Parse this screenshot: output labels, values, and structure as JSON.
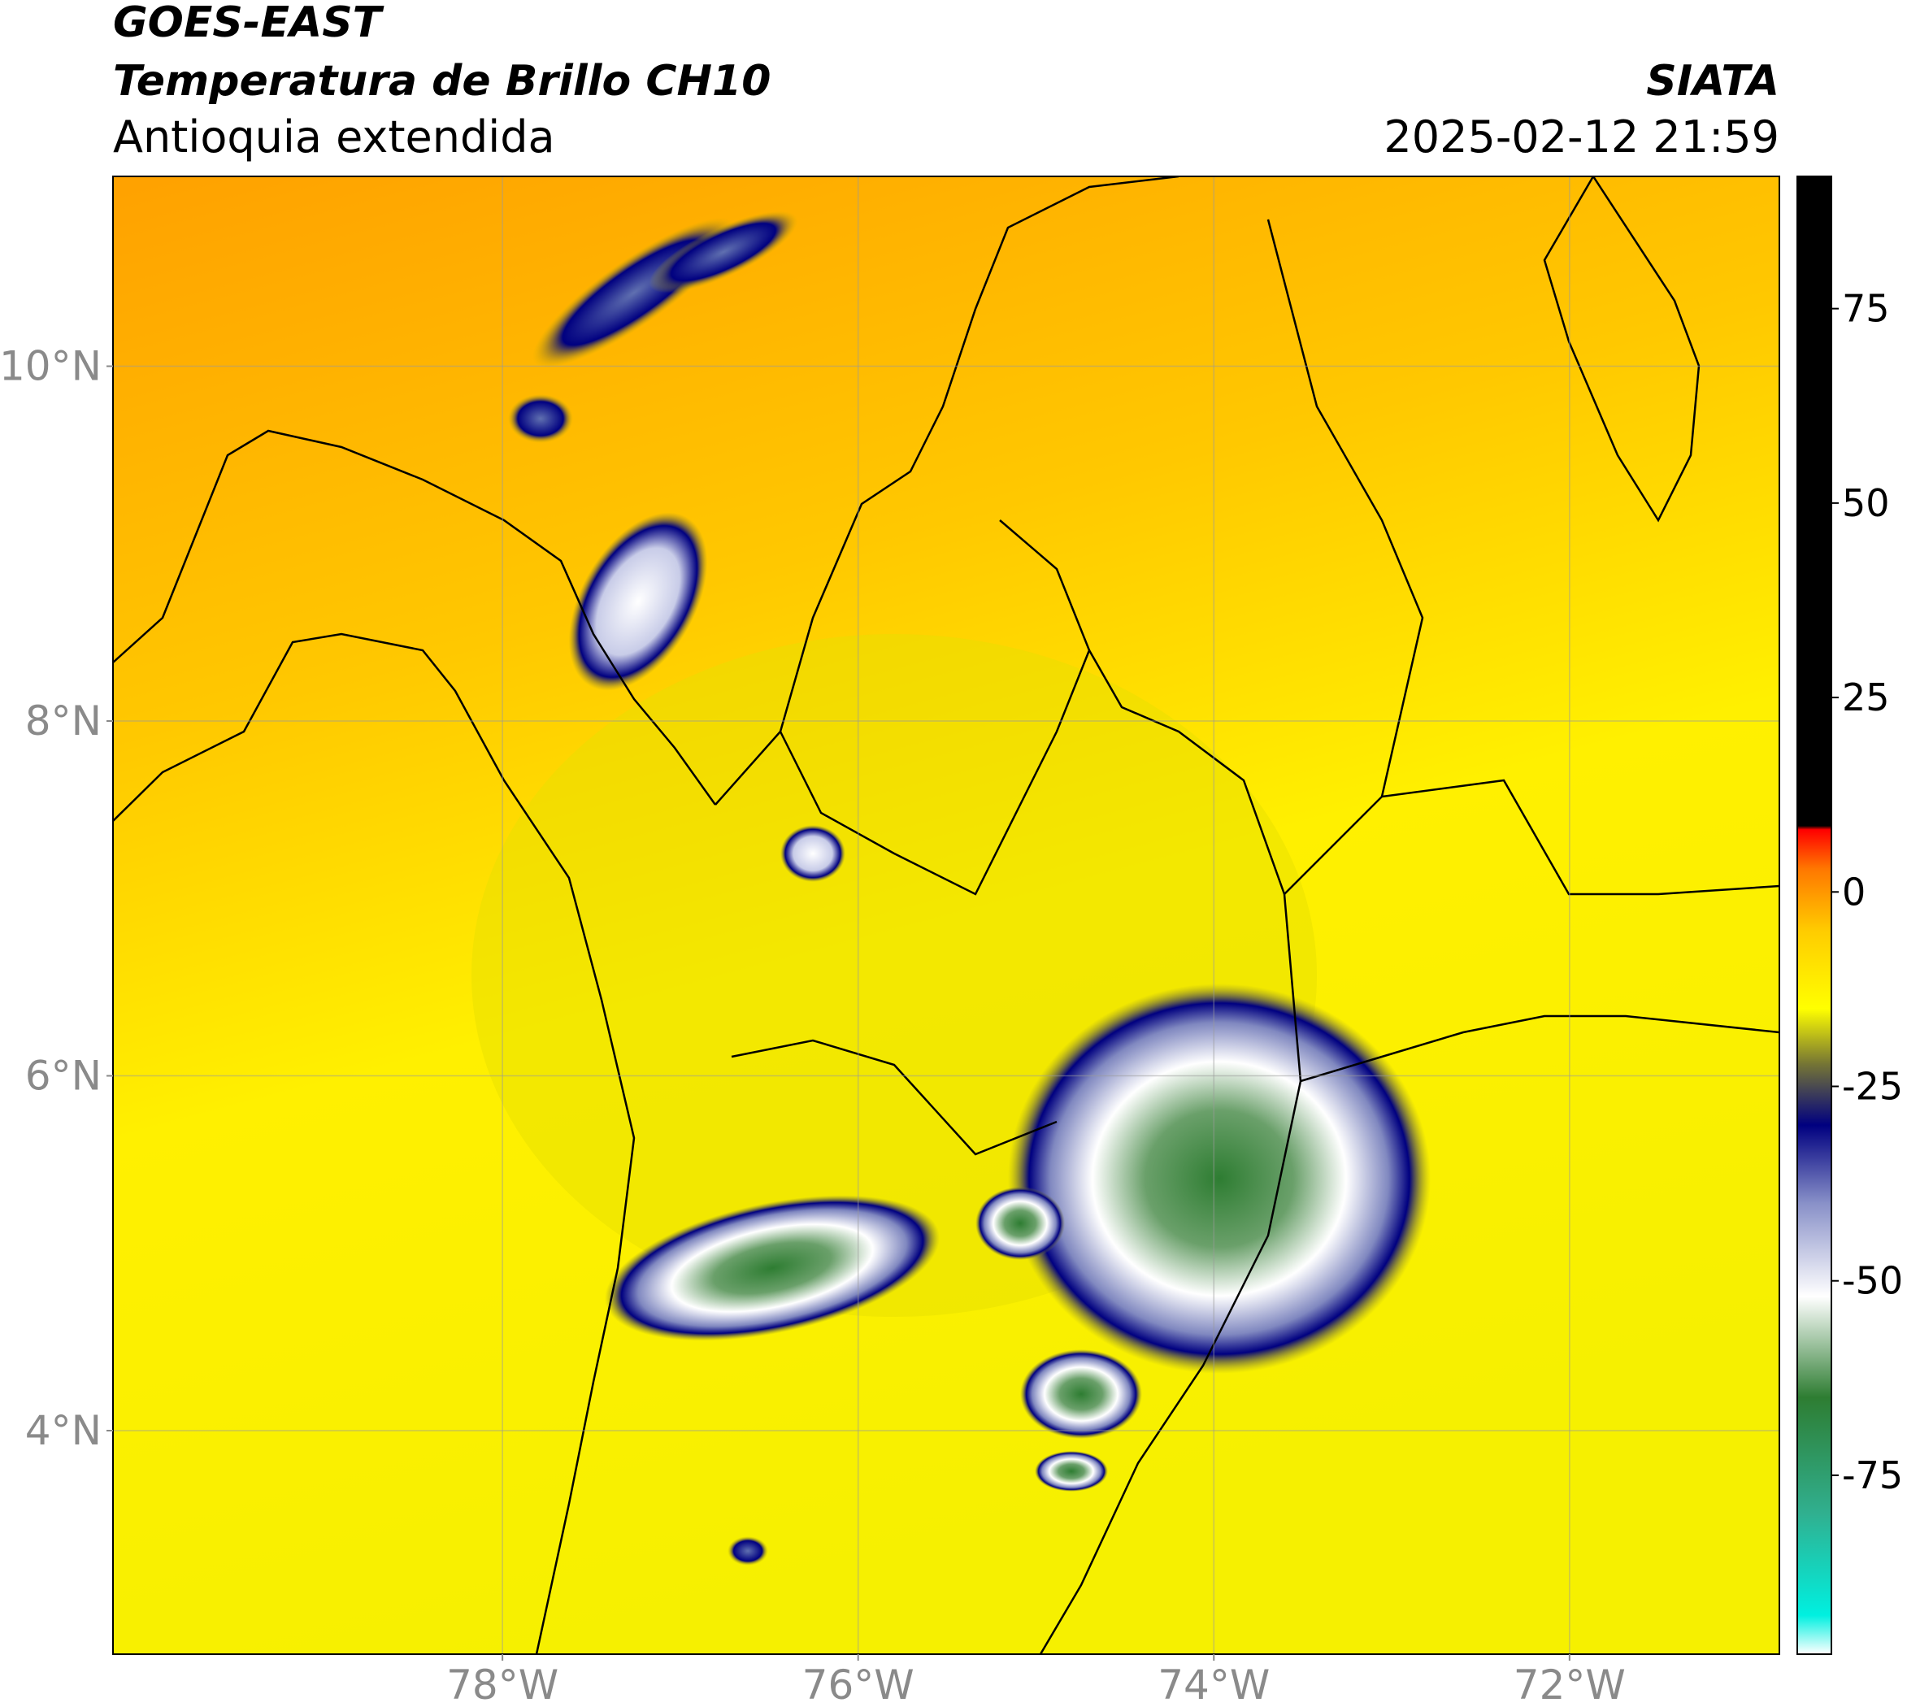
{
  "header": {
    "title": "GOES-EAST",
    "subtitle": "Temperatura de Brillo CH10",
    "region": "Antioquia extendida",
    "source": "SIATA",
    "datetime": "2025-02-12 21:59"
  },
  "map": {
    "xlim": [
      -80.19,
      -70.82
    ],
    "ylim": [
      2.74,
      11.07
    ],
    "xticks": [
      {
        "value": -78,
        "label": "78°W"
      },
      {
        "value": -76,
        "label": "76°W"
      },
      {
        "value": -74,
        "label": "74°W"
      },
      {
        "value": -72,
        "label": "72°W"
      }
    ],
    "yticks": [
      {
        "value": 4,
        "label": "4°N"
      },
      {
        "value": 6,
        "label": "6°N"
      },
      {
        "value": 8,
        "label": "8°N"
      },
      {
        "value": 10,
        "label": "10°N"
      }
    ],
    "grid": true
  },
  "colorbar": {
    "lim": [
      -98,
      92
    ],
    "ticks": [
      -75,
      -50,
      -25,
      0,
      25,
      50,
      75
    ],
    "colormap": [
      {
        "value": -98,
        "color": "#ffffff"
      },
      {
        "value": -93,
        "color": "#00f0e0"
      },
      {
        "value": -80,
        "color": "#30b090"
      },
      {
        "value": -65,
        "color": "#2e7d32"
      },
      {
        "value": -52,
        "color": "#ffffff"
      },
      {
        "value": -40,
        "color": "#8890c8"
      },
      {
        "value": -30,
        "color": "#000080"
      },
      {
        "value": -22,
        "color": "#777733"
      },
      {
        "value": -15,
        "color": "#ffff00"
      },
      {
        "value": -5,
        "color": "#ffcc00"
      },
      {
        "value": 3,
        "color": "#ff7700"
      },
      {
        "value": 8,
        "color": "#ff0000"
      },
      {
        "value": 8.5,
        "color": "#000000"
      },
      {
        "value": 92,
        "color": "#000000"
      }
    ]
  }
}
